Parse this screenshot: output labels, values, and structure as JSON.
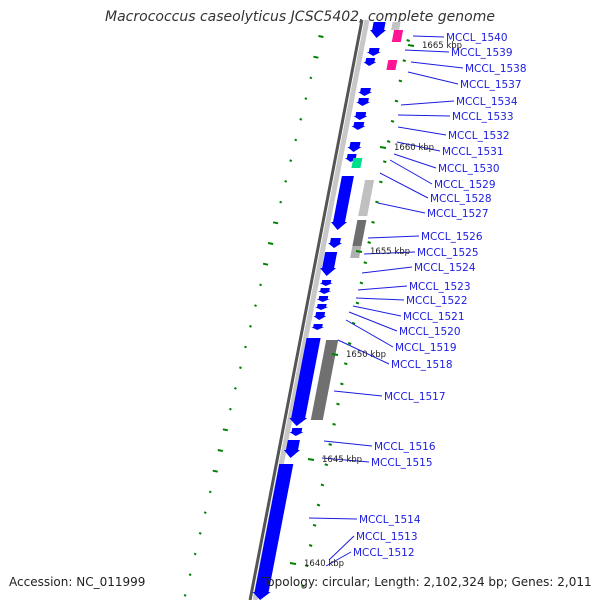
{
  "title": "Macrococcus caseolyticus JCSC5402, complete genome",
  "footer": {
    "accession": "Accession: NC_011999",
    "summary": "Topology: circular; Length: 2,102,324 bp; Genes: 2,011"
  },
  "colors": {
    "gene": "#0000ff",
    "label": "#1c1ce0",
    "tick": "#008000",
    "backbone_light": "#c8c8c8",
    "backbone_dark": "#555555",
    "rna_pink": "#ff1493",
    "rna_green": "#00e08a"
  },
  "kbp_marks": [
    "1640 kbp",
    "1645 kbp",
    "1650 kbp",
    "1655 kbp",
    "1660 kbp",
    "1665 kbp"
  ],
  "genes": [
    "MCCL_1540",
    "MCCL_1539",
    "MCCL_1538",
    "MCCL_1537",
    "MCCL_1534",
    "MCCL_1533",
    "MCCL_1532",
    "MCCL_1531",
    "MCCL_1530",
    "MCCL_1529",
    "MCCL_1528",
    "MCCL_1527",
    "MCCL_1526",
    "MCCL_1525",
    "MCCL_1524",
    "MCCL_1523",
    "MCCL_1522",
    "MCCL_1521",
    "MCCL_1520",
    "MCCL_1519",
    "MCCL_1518",
    "MCCL_1517",
    "MCCL_1516",
    "MCCL_1515",
    "MCCL_1514",
    "MCCL_1513",
    "MCCL_1512"
  ]
}
